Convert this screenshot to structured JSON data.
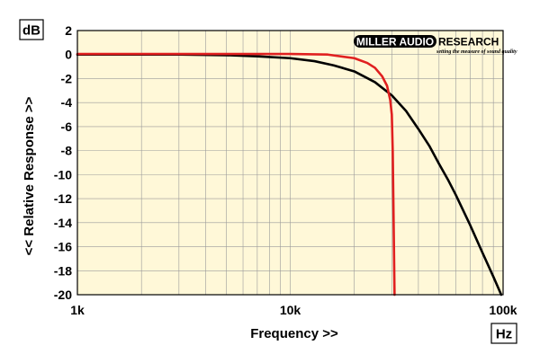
{
  "chart_data": {
    "type": "line",
    "xlabel": "Frequency >>",
    "ylabel": "<< Relative Response >>",
    "x_unit": "Hz",
    "y_unit": "dB",
    "x_scale": "log",
    "xlim": [
      1000,
      100000
    ],
    "ylim": [
      -20,
      2
    ],
    "grid": true,
    "x_ticks": [
      {
        "value": 1000,
        "label": "1k"
      },
      {
        "value": 10000,
        "label": "10k"
      },
      {
        "value": 100000,
        "label": "100k"
      }
    ],
    "y_ticks": [
      {
        "value": 2,
        "label": "2"
      },
      {
        "value": 0,
        "label": "0"
      },
      {
        "value": -2,
        "label": "-2"
      },
      {
        "value": -4,
        "label": "-4"
      },
      {
        "value": -6,
        "label": "-6"
      },
      {
        "value": -8,
        "label": "-8"
      },
      {
        "value": -10,
        "label": "-10"
      },
      {
        "value": -12,
        "label": "-12"
      },
      {
        "value": -14,
        "label": "-14"
      },
      {
        "value": -16,
        "label": "-16"
      },
      {
        "value": -18,
        "label": "-18"
      },
      {
        "value": -20,
        "label": "-20"
      }
    ],
    "series": [
      {
        "color": "#000000",
        "points": [
          [
            1000,
            0.0
          ],
          [
            2000,
            0.0
          ],
          [
            3000,
            0.0
          ],
          [
            5000,
            -0.05
          ],
          [
            7000,
            -0.15
          ],
          [
            10000,
            -0.3
          ],
          [
            13000,
            -0.55
          ],
          [
            16000,
            -0.9
          ],
          [
            20000,
            -1.4
          ],
          [
            25000,
            -2.3
          ],
          [
            30000,
            -3.4
          ],
          [
            35000,
            -4.7
          ],
          [
            40000,
            -6.2
          ],
          [
            45000,
            -7.6
          ],
          [
            50000,
            -9.1
          ],
          [
            55000,
            -10.4
          ],
          [
            60000,
            -11.7
          ],
          [
            70000,
            -14.2
          ],
          [
            80000,
            -16.5
          ],
          [
            90000,
            -18.5
          ],
          [
            98000,
            -20.0
          ]
        ]
      },
      {
        "color": "#e02020",
        "points": [
          [
            1000,
            0.05
          ],
          [
            5000,
            0.05
          ],
          [
            10000,
            0.05
          ],
          [
            15000,
            0.0
          ],
          [
            20000,
            -0.3
          ],
          [
            23000,
            -0.7
          ],
          [
            25000,
            -1.1
          ],
          [
            27000,
            -1.8
          ],
          [
            28500,
            -2.6
          ],
          [
            29500,
            -3.8
          ],
          [
            30000,
            -5.0
          ],
          [
            30300,
            -8.0
          ],
          [
            30500,
            -12.0
          ],
          [
            30700,
            -16.0
          ],
          [
            30900,
            -20.0
          ]
        ]
      }
    ]
  },
  "logo": {
    "brand_left": "MILLER AUDIO",
    "brand_right": "RESEARCH",
    "tagline": "setting the measure of sound quality"
  }
}
